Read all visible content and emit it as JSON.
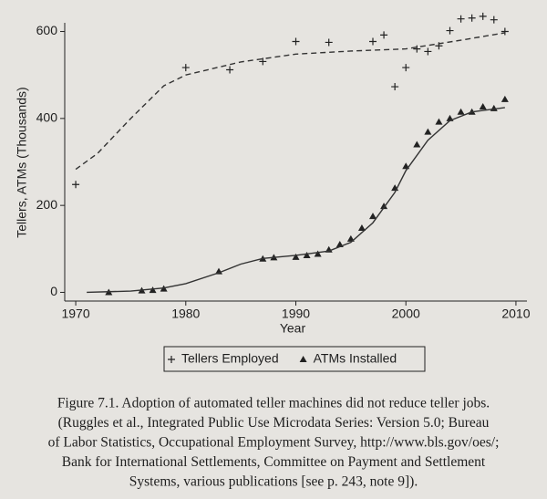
{
  "chart_data": {
    "type": "scatter",
    "xlabel": "Year",
    "ylabel": "Tellers, ATMs (Thousands)",
    "xlim": [
      1969,
      2011
    ],
    "xticks": [
      1970,
      1980,
      1990,
      2000,
      2010
    ],
    "ylim": [
      -20,
      620
    ],
    "yticks": [
      0,
      200,
      400,
      600
    ],
    "series": [
      {
        "name": "Tellers Employed",
        "marker": "plus",
        "color": "#222222",
        "x": [
          1970,
          1980,
          1984,
          1987,
          1990,
          1993,
          1997,
          1998,
          1999,
          2000,
          2001,
          2002,
          2003,
          2004,
          2005,
          2006,
          2007,
          2008,
          2009
        ],
        "values": [
          248,
          517,
          512,
          531,
          577,
          575,
          577,
          592,
          473,
          517,
          560,
          554,
          567,
          602,
          629,
          631,
          635,
          627,
          600
        ]
      },
      {
        "name": "ATMs Installed",
        "marker": "triangle",
        "color": "#222222",
        "x": [
          1973,
          1976,
          1977,
          1978,
          1983,
          1987,
          1988,
          1990,
          1991,
          1992,
          1993,
          1994,
          1995,
          1996,
          1997,
          1998,
          1999,
          2000,
          2001,
          2002,
          2003,
          2004,
          2005,
          2006,
          2007,
          2008,
          2009
        ],
        "values": [
          0,
          4,
          5,
          8,
          48,
          77,
          80,
          81,
          85,
          88,
          98,
          110,
          123,
          148,
          175,
          198,
          240,
          290,
          340,
          369,
          392,
          400,
          415,
          415,
          427,
          423,
          444
        ]
      },
      {
        "marker": "none",
        "line_style": "dashed",
        "color": "#333333",
        "x": [
          1970,
          1972,
          1975,
          1978,
          1980,
          1985,
          1990,
          1995,
          2000,
          2005,
          2009
        ],
        "values": [
          283,
          320,
          400,
          475,
          500,
          530,
          548,
          555,
          560,
          580,
          597
        ]
      },
      {
        "marker": "none",
        "line_style": "solid",
        "color": "#333333",
        "x": [
          1971,
          1975,
          1978,
          1980,
          1983,
          1985,
          1987,
          1990,
          1993,
          1995,
          1997,
          1999,
          2000,
          2002,
          2004,
          2006,
          2009
        ],
        "values": [
          0,
          3,
          10,
          20,
          45,
          65,
          78,
          85,
          95,
          115,
          160,
          230,
          280,
          350,
          395,
          415,
          425
        ]
      }
    ],
    "caption": [
      "Figure 7.1. Adoption of automated teller machines did not reduce teller jobs.",
      "(Ruggles et al., Integrated Public Use Microdata Series: Version 5.0; Bureau",
      "of Labor Statistics, Occupational Employment Survey, http://www.bls.gov/oes/;",
      "Bank for International Settlements, Committee on Payment and Settlement",
      "Systems, various publications [see p. 243, note 9])."
    ]
  }
}
